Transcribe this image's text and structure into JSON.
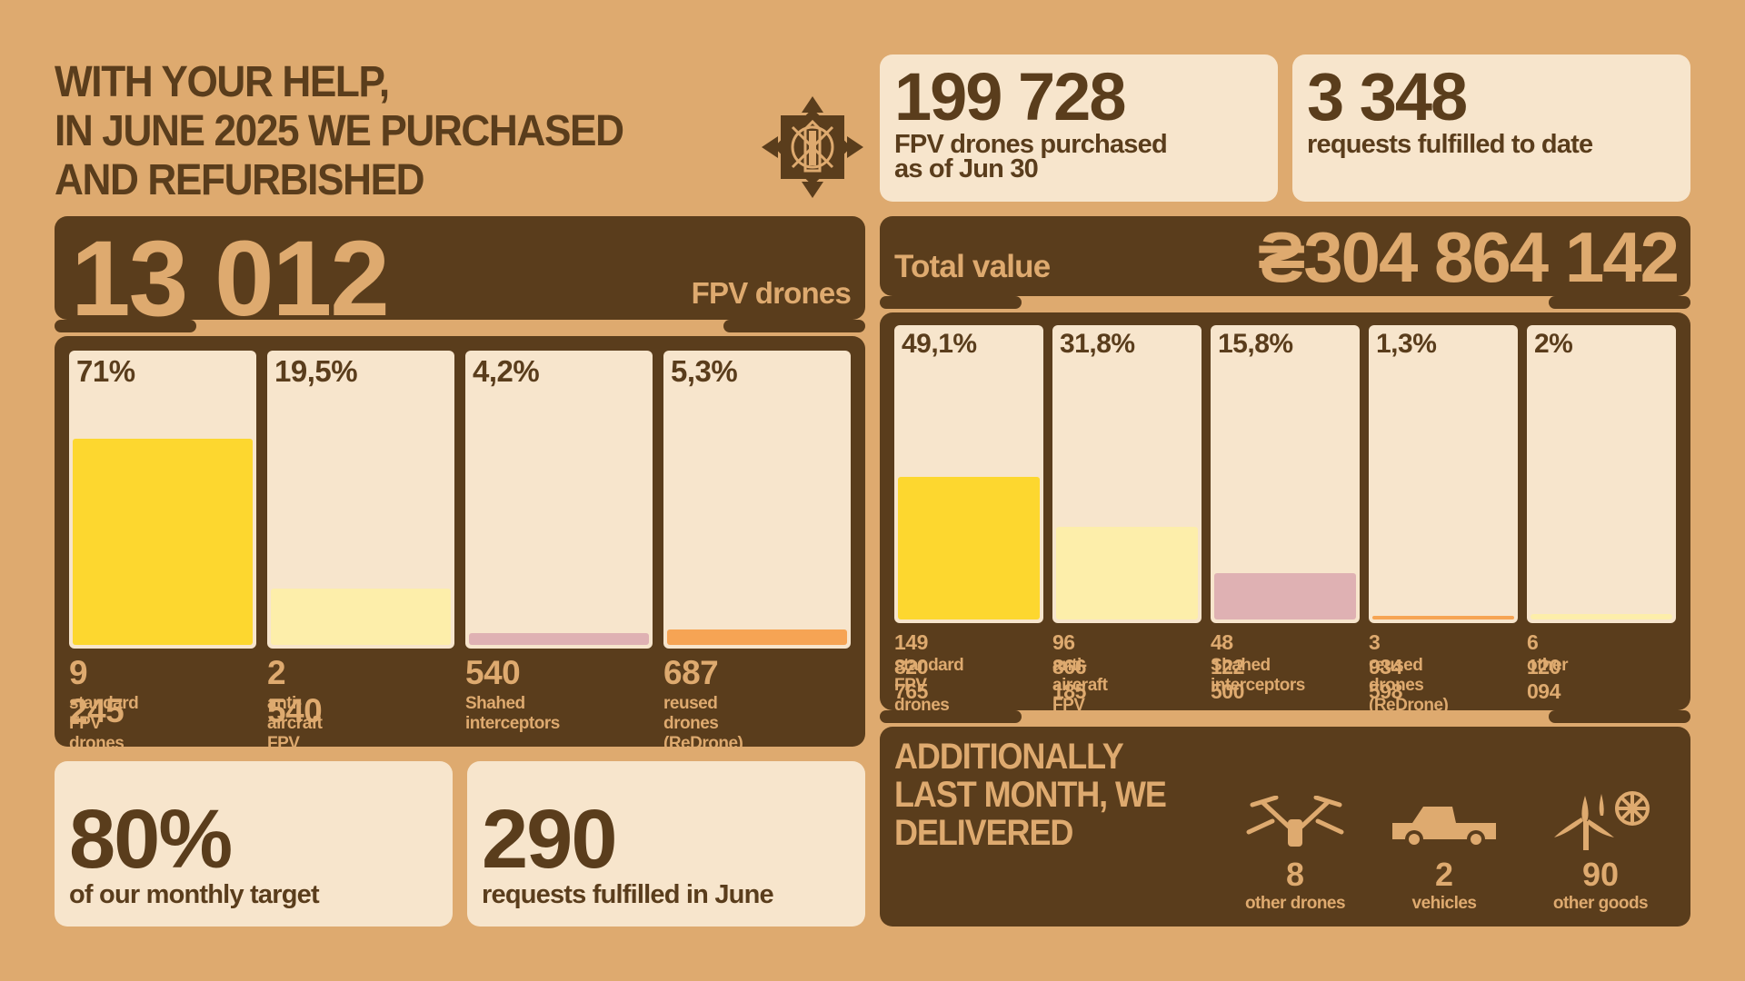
{
  "headline": [
    "WITH YOUR HELP,",
    "IN JUNE 2025 WE PURCHASED",
    "AND REFURBISHED"
  ],
  "total_drones": {
    "value": "13 012",
    "unit": "FPV drones"
  },
  "drone_bars": [
    {
      "pct": "71%",
      "fraction": 0.71,
      "value": "9 245",
      "label": [
        "standard",
        "FPV drones"
      ],
      "color": "#fdd72f"
    },
    {
      "pct": "19,5%",
      "fraction": 0.195,
      "value": "2 540",
      "label": [
        "anti-aircraft",
        "FPV drones"
      ],
      "color": "#fdeeaa"
    },
    {
      "pct": "4,2%",
      "fraction": 0.042,
      "value": "540",
      "label": [
        "Shahed",
        "interceptors"
      ],
      "color": "#dfb1b3"
    },
    {
      "pct": "5,3%",
      "fraction": 0.053,
      "value": "687",
      "label": [
        "reused drones",
        "(ReDrone)"
      ],
      "color": "#f6a454"
    }
  ],
  "monthly_target": {
    "value": "80%",
    "label": "of our monthly target"
  },
  "requests_june": {
    "value": "290",
    "label": "requests fulfilled in June"
  },
  "purchased_total": {
    "value": "199 728",
    "label": [
      "FPV drones purchased",
      "as of Jun 30"
    ]
  },
  "requests_total": {
    "value": "3 348",
    "label": "requests fulfilled to date"
  },
  "total_value": {
    "label": "Total value",
    "value": "₴304 864 142"
  },
  "value_bars": [
    {
      "pct": "49,1%",
      "fraction": 0.491,
      "value": "149 820 765",
      "label": [
        "standard",
        "FPV drones"
      ],
      "color": "#fdd72f"
    },
    {
      "pct": "31,8%",
      "fraction": 0.318,
      "value": "96 866 185",
      "label": [
        "anti-aircraft",
        "FPV drones"
      ],
      "color": "#fdeeaa"
    },
    {
      "pct": "15,8%",
      "fraction": 0.158,
      "value": "48 122 500",
      "label": [
        "Shahed",
        "interceptors"
      ],
      "color": "#dfb1b3"
    },
    {
      "pct": "1,3%",
      "fraction": 0.013,
      "value": "3 934 598",
      "label": [
        "reused drones",
        "(ReDrone)"
      ],
      "color": "#f6a454"
    },
    {
      "pct": "2%",
      "fraction": 0.02,
      "value": "6 120 094",
      "label": [
        "other",
        ""
      ],
      "color": "#f7e5cc"
    }
  ],
  "additionally": {
    "title": [
      "ADDITIONALLY",
      "LAST MONTH, WE",
      "DELIVERED"
    ],
    "items": [
      {
        "icon": "drone-icon",
        "value": "8",
        "label": "other drones"
      },
      {
        "icon": "pickup-truck-icon",
        "value": "2",
        "label": "vehicles"
      },
      {
        "icon": "wind-turbine-icon",
        "value": "90",
        "label": "other goods"
      }
    ]
  }
}
